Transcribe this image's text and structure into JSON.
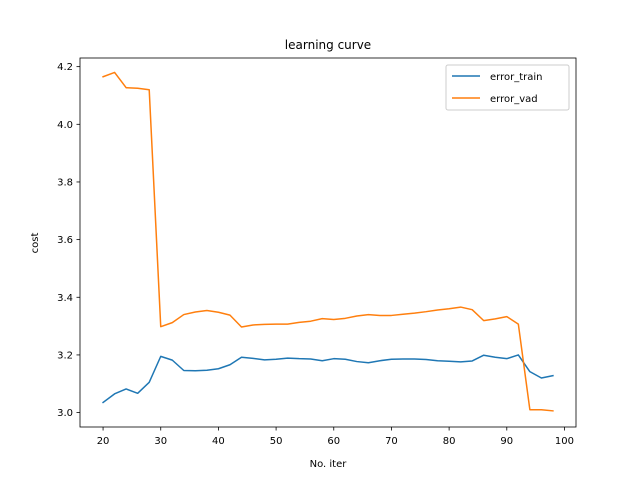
{
  "chart_data": {
    "type": "line",
    "title": "learning curve",
    "xlabel": "No. iter",
    "ylabel": "cost",
    "xlim": [
      16,
      102
    ],
    "ylim": [
      2.95,
      4.23
    ],
    "xticks": [
      20,
      30,
      40,
      50,
      60,
      70,
      80,
      90,
      100
    ],
    "yticks": [
      3.0,
      3.2,
      3.4,
      3.6,
      3.8,
      4.0,
      4.2
    ],
    "xtick_labels": [
      "20",
      "30",
      "40",
      "50",
      "60",
      "70",
      "80",
      "90",
      "100"
    ],
    "ytick_labels": [
      "3.0",
      "3.2",
      "3.4",
      "3.6",
      "3.8",
      "4.0",
      "4.2"
    ],
    "grid": false,
    "legend_position": "top-right",
    "x": [
      20,
      22,
      24,
      26,
      28,
      30,
      32,
      34,
      36,
      38,
      40,
      42,
      44,
      46,
      48,
      50,
      52,
      54,
      56,
      58,
      60,
      62,
      64,
      66,
      68,
      70,
      72,
      74,
      76,
      78,
      80,
      82,
      84,
      86,
      88,
      90,
      92,
      94,
      96,
      98
    ],
    "series": [
      {
        "name": "error_train",
        "color": "#1f77b4",
        "values": [
          3.035,
          3.065,
          3.082,
          3.067,
          3.105,
          3.195,
          3.182,
          3.146,
          3.145,
          3.147,
          3.152,
          3.166,
          3.192,
          3.188,
          3.183,
          3.185,
          3.189,
          3.187,
          3.186,
          3.18,
          3.187,
          3.185,
          3.177,
          3.173,
          3.18,
          3.185,
          3.186,
          3.186,
          3.184,
          3.18,
          3.178,
          3.176,
          3.179,
          3.199,
          3.192,
          3.187,
          3.2,
          3.142,
          3.12,
          3.128
        ]
      },
      {
        "name": "error_vad",
        "color": "#ff7f0e",
        "values": [
          4.165,
          4.18,
          4.127,
          4.125,
          4.12,
          3.298,
          3.312,
          3.34,
          3.349,
          3.354,
          3.348,
          3.338,
          3.297,
          3.304,
          3.306,
          3.307,
          3.307,
          3.313,
          3.317,
          3.326,
          3.323,
          3.327,
          3.335,
          3.34,
          3.337,
          3.337,
          3.341,
          3.345,
          3.35,
          3.356,
          3.36,
          3.366,
          3.357,
          3.319,
          3.325,
          3.333,
          3.307,
          3.01,
          3.01,
          3.006
        ]
      }
    ]
  }
}
